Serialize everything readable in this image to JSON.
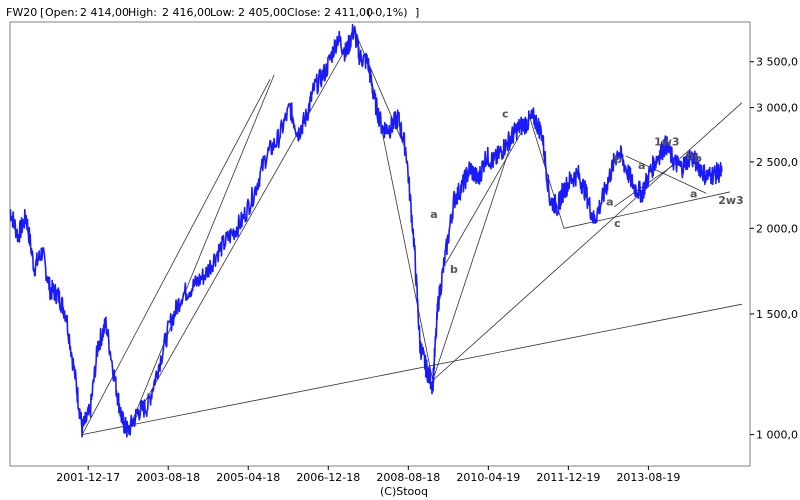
{
  "header": {
    "symbol": "FW20",
    "open_label": "Open:",
    "open": "2 414,00",
    "high_label": "High:",
    "high": "2 416,00",
    "low_label": "Low:",
    "low": "2 405,00",
    "close_label": "Close:",
    "close": "2 411,00",
    "change": "(-0,1%)"
  },
  "footer": {
    "source": "(C)Stooq"
  },
  "colors": {
    "price_line": "#1a1aff",
    "trend_lines": "#333333",
    "annotations": "#777777",
    "frame": "#808080"
  },
  "chart_data": {
    "type": "line",
    "scale": "log",
    "grid": false,
    "ylim": [
      900,
      4000
    ],
    "xlim": [
      "2000-05-01",
      "2015-10-01"
    ],
    "yticks": [
      {
        "value": 1000,
        "label": "1 000,0"
      },
      {
        "value": 1500,
        "label": "1 500,0"
      },
      {
        "value": 2000,
        "label": "2 000,0"
      },
      {
        "value": 2500,
        "label": "2 500,0"
      },
      {
        "value": 3000,
        "label": "3 000,0"
      },
      {
        "value": 3500,
        "label": "3 500,0"
      }
    ],
    "xticks": [
      "2001-12-17",
      "2003-08-18",
      "2005-04-18",
      "2006-12-18",
      "2008-08-18",
      "2010-04-19",
      "2011-12-19",
      "2013-08-19"
    ],
    "series": [
      {
        "x": [
          "2000-05-01",
          "2000-07-01",
          "2000-09-01",
          "2000-11-01",
          "2001-01-01",
          "2001-03-01",
          "2001-05-01",
          "2001-07-01",
          "2001-09-15",
          "2001-11-01",
          "2002-01-01",
          "2002-03-01",
          "2002-05-01",
          "2002-07-15",
          "2002-09-01",
          "2002-10-15",
          "2003-01-01",
          "2003-03-15",
          "2003-06-01",
          "2003-09-01",
          "2003-12-01",
          "2004-03-01",
          "2004-06-01",
          "2004-09-01",
          "2004-12-01",
          "2005-03-01",
          "2005-06-01",
          "2005-09-01",
          "2005-12-01",
          "2006-03-01",
          "2006-05-01",
          "2006-07-01",
          "2006-09-01",
          "2006-12-01",
          "2007-03-01",
          "2007-05-01",
          "2007-07-01",
          "2007-08-15",
          "2007-10-15",
          "2007-12-01",
          "2008-02-01",
          "2008-04-01",
          "2008-06-01",
          "2008-08-01",
          "2008-10-01",
          "2008-11-15",
          "2009-01-01",
          "2009-02-20",
          "2009-04-01",
          "2009-06-01",
          "2009-08-01",
          "2009-10-01",
          "2009-12-01",
          "2010-02-01",
          "2010-04-01",
          "2010-06-01",
          "2010-08-01",
          "2010-10-01",
          "2010-12-01",
          "2011-02-01",
          "2011-04-01",
          "2011-06-01",
          "2011-08-01",
          "2011-09-30",
          "2011-11-01",
          "2012-01-01",
          "2012-03-01",
          "2012-05-01",
          "2012-07-01",
          "2012-09-01",
          "2012-11-01",
          "2013-01-01",
          "2013-03-01",
          "2013-05-01",
          "2013-07-01",
          "2013-09-01",
          "2013-11-01",
          "2014-01-01",
          "2014-03-01",
          "2014-05-01",
          "2014-07-01",
          "2014-09-01",
          "2014-11-01",
          "2015-01-01",
          "2015-03-01"
        ],
        "values": [
          2130,
          1950,
          2080,
          1750,
          1850,
          1630,
          1600,
          1500,
          1190,
          1020,
          1080,
          1350,
          1450,
          1180,
          1050,
          1010,
          1080,
          1100,
          1250,
          1450,
          1600,
          1650,
          1720,
          1850,
          1950,
          2050,
          2250,
          2550,
          2700,
          3000,
          2750,
          2900,
          3200,
          3400,
          3800,
          3600,
          3900,
          3550,
          3500,
          3100,
          2800,
          2800,
          2900,
          2600,
          1900,
          1350,
          1250,
          1180,
          1550,
          1850,
          2200,
          2300,
          2450,
          2350,
          2550,
          2500,
          2600,
          2700,
          2800,
          2850,
          2900,
          2750,
          2200,
          2150,
          2250,
          2350,
          2400,
          2250,
          2050,
          2200,
          2400,
          2600,
          2450,
          2300,
          2250,
          2420,
          2550,
          2650,
          2500,
          2450,
          2550,
          2480,
          2380,
          2400,
          2420
        ]
      }
    ],
    "annotations": [
      "a",
      "b",
      "c",
      "a",
      "b",
      "c",
      "a",
      "b",
      "1w3",
      "b",
      "a",
      "2w3"
    ]
  }
}
